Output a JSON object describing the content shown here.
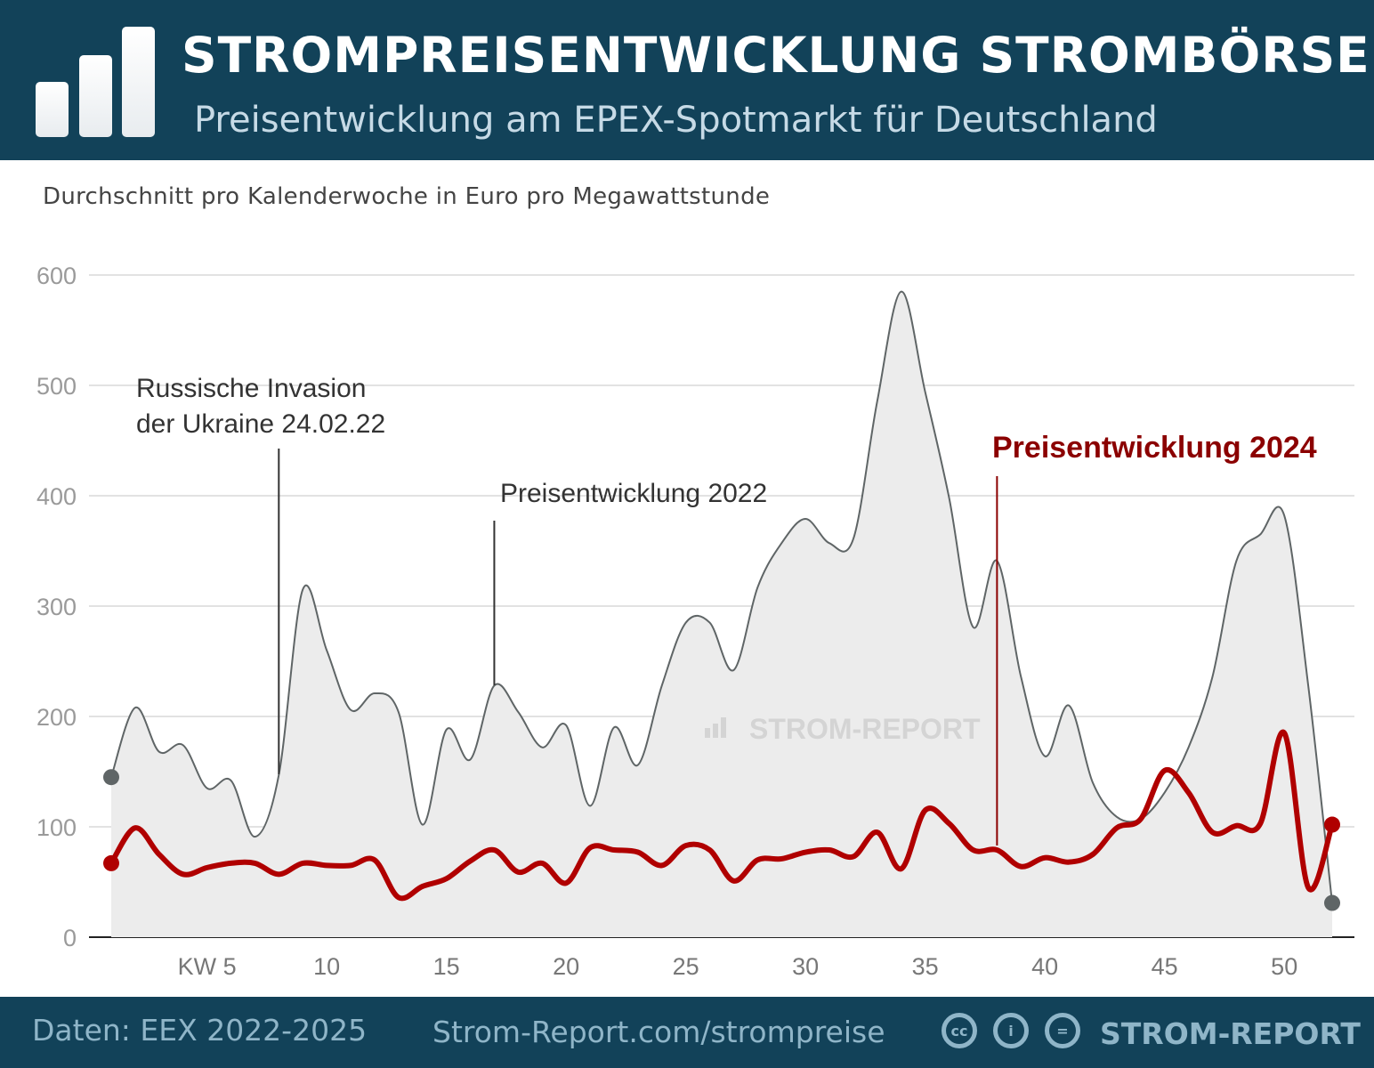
{
  "header": {
    "title": "STROMPREISENTWICKLUNG STROMBÖRSE",
    "subtitle": "Preisentwicklung am EPEX-Spotmarkt für Deutschland",
    "logo_icon": "bar-chart-logo-icon"
  },
  "unit_note": "Durchschnitt pro Kalenderwoche in Euro pro Megawattstunde",
  "chart_data": {
    "type": "area",
    "xlabel": "",
    "ylabel": "",
    "x": [
      1,
      2,
      3,
      4,
      5,
      6,
      7,
      8,
      9,
      10,
      11,
      12,
      13,
      14,
      15,
      16,
      17,
      18,
      19,
      20,
      21,
      22,
      23,
      24,
      25,
      26,
      27,
      28,
      29,
      30,
      31,
      32,
      33,
      34,
      35,
      36,
      37,
      38,
      39,
      40,
      41,
      42,
      43,
      44,
      45,
      46,
      47,
      48,
      49,
      50,
      51,
      52
    ],
    "xlim": [
      1,
      52
    ],
    "ylim": [
      0,
      600
    ],
    "x_ticks": [
      {
        "value": 5,
        "label": "KW 5"
      },
      {
        "value": 10,
        "label": "10"
      },
      {
        "value": 15,
        "label": "15"
      },
      {
        "value": 20,
        "label": "20"
      },
      {
        "value": 25,
        "label": "25"
      },
      {
        "value": 30,
        "label": "30"
      },
      {
        "value": 35,
        "label": "35"
      },
      {
        "value": 40,
        "label": "40"
      },
      {
        "value": 45,
        "label": "45"
      },
      {
        "value": 50,
        "label": "50"
      }
    ],
    "y_ticks": [
      "0",
      "100",
      "200",
      "300",
      "400",
      "500",
      "600"
    ],
    "grid": true,
    "series": [
      {
        "name": "Preisentwicklung 2022",
        "style": "area",
        "color": "#5f6566",
        "fill": "#ececec",
        "values": [
          145,
          208,
          168,
          174,
          135,
          142,
          91,
          147,
          315,
          260,
          206,
          221,
          204,
          102,
          188,
          161,
          228,
          204,
          172,
          192,
          119,
          190,
          156,
          228,
          285,
          285,
          242,
          317,
          357,
          379,
          357,
          361,
          486,
          585,
          494,
          398,
          281,
          341,
          236,
          164,
          210,
          140,
          109,
          107,
          131,
          172,
          236,
          341,
          365,
          382,
          228,
          31
        ]
      },
      {
        "name": "Preisentwicklung 2024",
        "style": "line",
        "color": "#b00000",
        "values": [
          67,
          99,
          75,
          57,
          63,
          67,
          67,
          57,
          67,
          65,
          65,
          70,
          36,
          46,
          53,
          69,
          79,
          59,
          67,
          49,
          81,
          79,
          77,
          65,
          83,
          79,
          51,
          70,
          71,
          77,
          79,
          73,
          95,
          62,
          115,
          103,
          79,
          79,
          64,
          72,
          68,
          75,
          99,
          107,
          151,
          131,
          95,
          101,
          103,
          185,
          45,
          102
        ]
      }
    ],
    "annotations": [
      {
        "text_lines": [
          "Russische Invasion",
          "der Ukraine 24.02.22"
        ],
        "week": 8
      },
      {
        "text_lines": [
          "Preisentwicklung 2022"
        ],
        "week": 17
      },
      {
        "text_lines": [
          "Preisentwicklung 2024"
        ],
        "week": 38
      }
    ],
    "watermark": "STROM-REPORT"
  },
  "footer": {
    "source": "Daten: EEX 2022-2025",
    "url": "Strom-Report.com/strompreise",
    "brand": "STROM-REPORT",
    "license_icons": [
      "cc",
      "by",
      "nd"
    ]
  }
}
